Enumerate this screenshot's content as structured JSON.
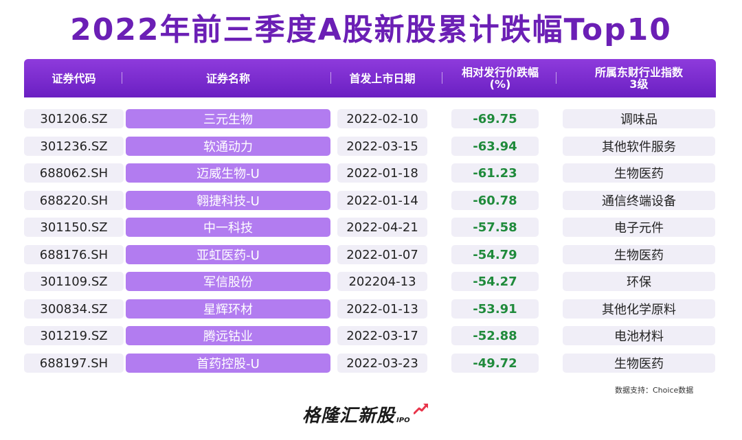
{
  "title": "2022年前三季度A股新股累计跌幅Top10",
  "columns": [
    "证券代码",
    "证券名称",
    "首发上市日期",
    "相对发行价跌幅\n(%)",
    "所属东财行业指数\n3级"
  ],
  "rows": [
    {
      "code": "301206.SZ",
      "name": "三元生物",
      "date": "2022-02-10",
      "pct": "-69.75",
      "industry": "调味品"
    },
    {
      "code": "301236.SZ",
      "name": "软通动力",
      "date": "2022-03-15",
      "pct": "-63.94",
      "industry": "其他软件服务"
    },
    {
      "code": "688062.SH",
      "name": "迈威生物-U",
      "date": "2022-01-18",
      "pct": "-61.23",
      "industry": "生物医药"
    },
    {
      "code": "688220.SH",
      "name": "翱捷科技-U",
      "date": "2022-01-14",
      "pct": "-60.78",
      "industry": "通信终端设备"
    },
    {
      "code": "301150.SZ",
      "name": "中一科技",
      "date": "2022-04-21",
      "pct": "-57.58",
      "industry": "电子元件"
    },
    {
      "code": "688176.SH",
      "name": "亚虹医药-U",
      "date": "2022-01-07",
      "pct": "-54.79",
      "industry": "生物医药"
    },
    {
      "code": "301109.SZ",
      "name": "军信股份",
      "date": "202204-13",
      "pct": "-54.27",
      "industry": "环保"
    },
    {
      "code": "300834.SZ",
      "name": "星辉环材",
      "date": "2022-01-13",
      "pct": "-53.91",
      "industry": "其他化学原料"
    },
    {
      "code": "301219.SZ",
      "name": "腾远钴业",
      "date": "2022-03-17",
      "pct": "-52.88",
      "industry": "电池材料"
    },
    {
      "code": "688197.SH",
      "name": "首药控股-U",
      "date": "2022-03-23",
      "pct": "-49.72",
      "industry": "生物医药"
    }
  ],
  "source": "数据支持：Choice数据",
  "logo": {
    "text": "格隆汇新股",
    "sub": "IPO",
    "icon": "trend-up-arrow-icon"
  },
  "colors": {
    "title": "#6b1fb5",
    "header": "#7a2bcf",
    "name_pill": "#b27cf0",
    "cell_bg": "#f0eef7",
    "pct_text": "#1f8a3b",
    "arrow": "#e8344a"
  }
}
